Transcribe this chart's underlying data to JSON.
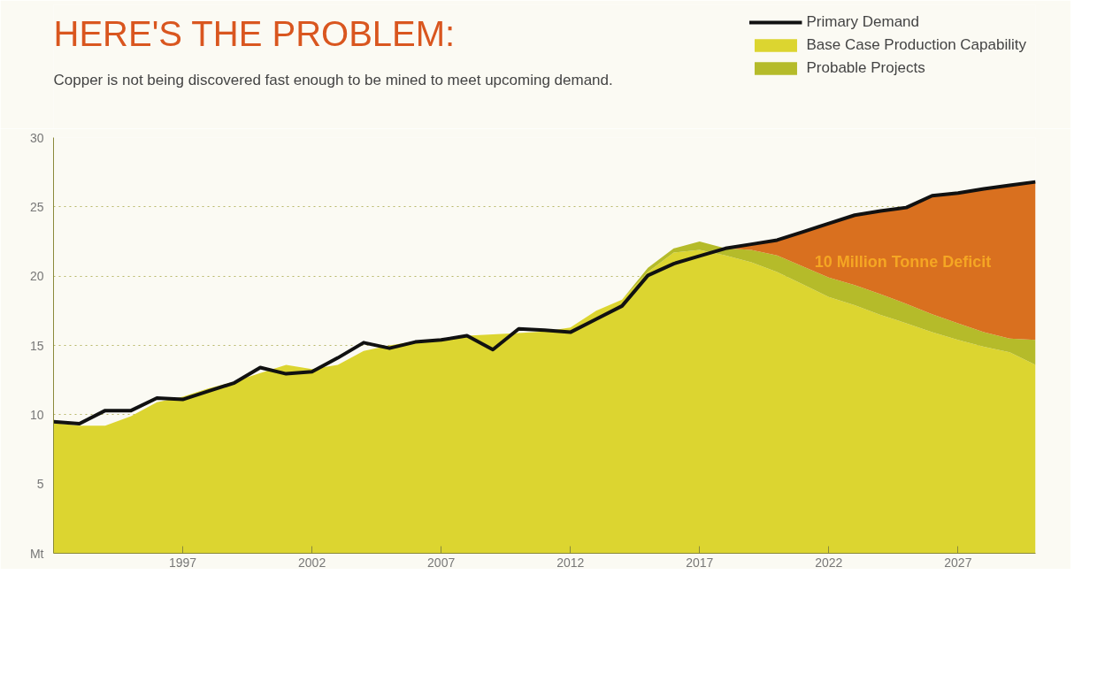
{
  "chart_data": {
    "type": "area",
    "title": "HERE'S THE PROBLEM:",
    "subtitle": "Copper is not being discovered fast enough to be mined to meet upcoming demand.",
    "x": [
      1992,
      1993,
      1994,
      1995,
      1996,
      1997,
      1998,
      1999,
      2000,
      2001,
      2002,
      2003,
      2004,
      2005,
      2006,
      2007,
      2008,
      2009,
      2010,
      2011,
      2012,
      2013,
      2014,
      2015,
      2016,
      2017,
      2018,
      2019,
      2020,
      2021,
      2022,
      2023,
      2024,
      2025,
      2026,
      2027,
      2028,
      2029,
      2030
    ],
    "stacked": true,
    "series": [
      {
        "name": "Base Case Production Capability",
        "color": "#dcd530",
        "values": [
          9.4,
          9.2,
          9.2,
          9.9,
          10.9,
          11.3,
          11.9,
          12.4,
          13.0,
          13.6,
          13.3,
          13.6,
          14.6,
          15.0,
          15.3,
          15.5,
          15.7,
          15.8,
          15.9,
          16.0,
          16.3,
          17.5,
          18.3,
          20.3,
          21.7,
          21.9,
          21.5,
          21.0,
          20.3,
          19.4,
          18.5,
          17.9,
          17.2,
          16.6,
          15.95,
          15.4,
          14.9,
          14.5,
          13.6
        ]
      },
      {
        "name": "Probable Projects",
        "color": "#b5bb2a",
        "values": [
          0,
          0,
          0,
          0,
          0,
          0,
          0,
          0,
          0,
          0,
          0,
          0,
          0,
          0,
          0,
          0,
          0,
          0,
          0,
          0,
          0,
          0,
          0,
          0.3,
          0.3,
          0.6,
          0.5,
          0.9,
          1.2,
          1.3,
          1.4,
          1.45,
          1.5,
          1.4,
          1.3,
          1.2,
          1.05,
          1.0,
          1.8
        ]
      },
      {
        "color": "#d9701f",
        "values": [
          null,
          null,
          null,
          null,
          null,
          null,
          null,
          null,
          null,
          null,
          null,
          null,
          null,
          null,
          null,
          null,
          null,
          null,
          null,
          null,
          null,
          null,
          null,
          null,
          null,
          null,
          0,
          0.4,
          1.1,
          2.5,
          3.9,
          5.05,
          6.0,
          6.95,
          8.55,
          9.4,
          10.35,
          11.05,
          11.4
        ]
      },
      {
        "name": "Primary Demand",
        "type": "line",
        "color": "#111111",
        "values": [
          9.5,
          9.35,
          10.3,
          10.3,
          11.2,
          11.1,
          11.7,
          12.3,
          13.4,
          12.95,
          13.1,
          14.1,
          15.2,
          14.8,
          15.25,
          15.4,
          15.7,
          14.7,
          16.2,
          16.1,
          15.95,
          16.9,
          17.85,
          20.05,
          20.9,
          21.45,
          22.0,
          22.3,
          22.6,
          23.2,
          23.8,
          24.4,
          24.7,
          24.95,
          25.8,
          26.0,
          26.3,
          26.55,
          26.8
        ]
      }
    ],
    "xlim": [
      1992,
      2030
    ],
    "xticks": [
      1997,
      2002,
      2007,
      2012,
      2017,
      2022,
      2027
    ],
    "ylim": [
      0,
      30
    ],
    "yticks": [
      {
        "value": 0,
        "label": "Mt"
      },
      5,
      10,
      15,
      20,
      25,
      30
    ],
    "grid": "y",
    "legend": "top right",
    "annotations": [
      "10 Million Tonne Deficit"
    ]
  }
}
